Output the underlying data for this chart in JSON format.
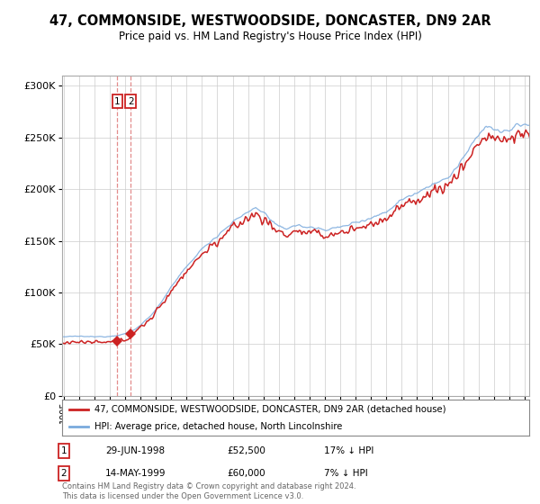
{
  "title": "47, COMMONSIDE, WESTWOODSIDE, DONCASTER, DN9 2AR",
  "subtitle": "Price paid vs. HM Land Registry's House Price Index (HPI)",
  "hpi_label": "HPI: Average price, detached house, North Lincolnshire",
  "property_label": "47, COMMONSIDE, WESTWOODSIDE, DONCASTER, DN9 2AR (detached house)",
  "hpi_color": "#7aaadd",
  "property_color": "#cc2222",
  "dashed_line_color": "#e08080",
  "background_color": "#ffffff",
  "grid_color": "#cccccc",
  "transactions": [
    {
      "num": 1,
      "date": "29-JUN-1998",
      "price": 52500,
      "year": 1998.5,
      "hpi_pct": "17% ↓ HPI"
    },
    {
      "num": 2,
      "date": "14-MAY-1999",
      "price": 60000,
      "year": 1999.37,
      "hpi_pct": "7% ↓ HPI"
    }
  ],
  "footer": "Contains HM Land Registry data © Crown copyright and database right 2024.\nThis data is licensed under the Open Government Licence v3.0.",
  "ylim": [
    0,
    310000
  ],
  "yticks": [
    0,
    50000,
    100000,
    150000,
    200000,
    250000,
    300000
  ],
  "x_start_year": 1995,
  "x_end_year": 2025
}
